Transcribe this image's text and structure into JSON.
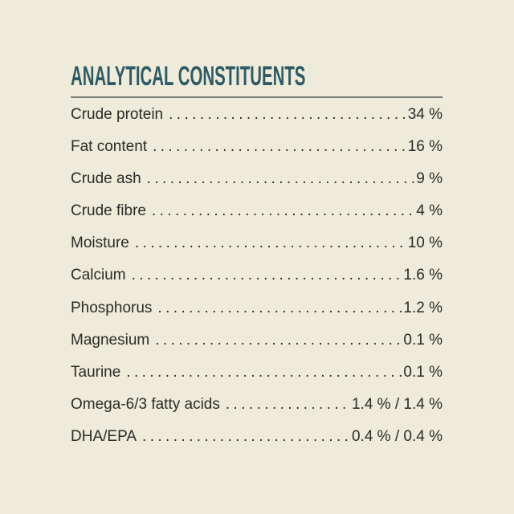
{
  "colors": {
    "background": "#eeebda",
    "title": "#2f5a64",
    "rule": "#7c7e79",
    "text": "#2b2b27"
  },
  "header": {
    "title": "ANALYTICAL CONSTITUENTS"
  },
  "table": {
    "rows": [
      {
        "label": "Crude protein",
        "value": "34 %"
      },
      {
        "label": "Fat content",
        "value": "16 %"
      },
      {
        "label": "Crude ash",
        "value": "9 %"
      },
      {
        "label": "Crude fibre",
        "value": "4 %"
      },
      {
        "label": "Moisture",
        "value": "10 %"
      },
      {
        "label": "Calcium",
        "value": "1.6 %"
      },
      {
        "label": "Phosphorus",
        "value": "1.2 %"
      },
      {
        "label": "Magnesium",
        "value": "0.1 %"
      },
      {
        "label": "Taurine",
        "value": "0.1 %"
      },
      {
        "label": "Omega-6/3 fatty acids",
        "value": "1.4 % / 1.4 %"
      },
      {
        "label": "DHA/EPA",
        "value": "0.4 % / 0.4 %"
      }
    ]
  }
}
